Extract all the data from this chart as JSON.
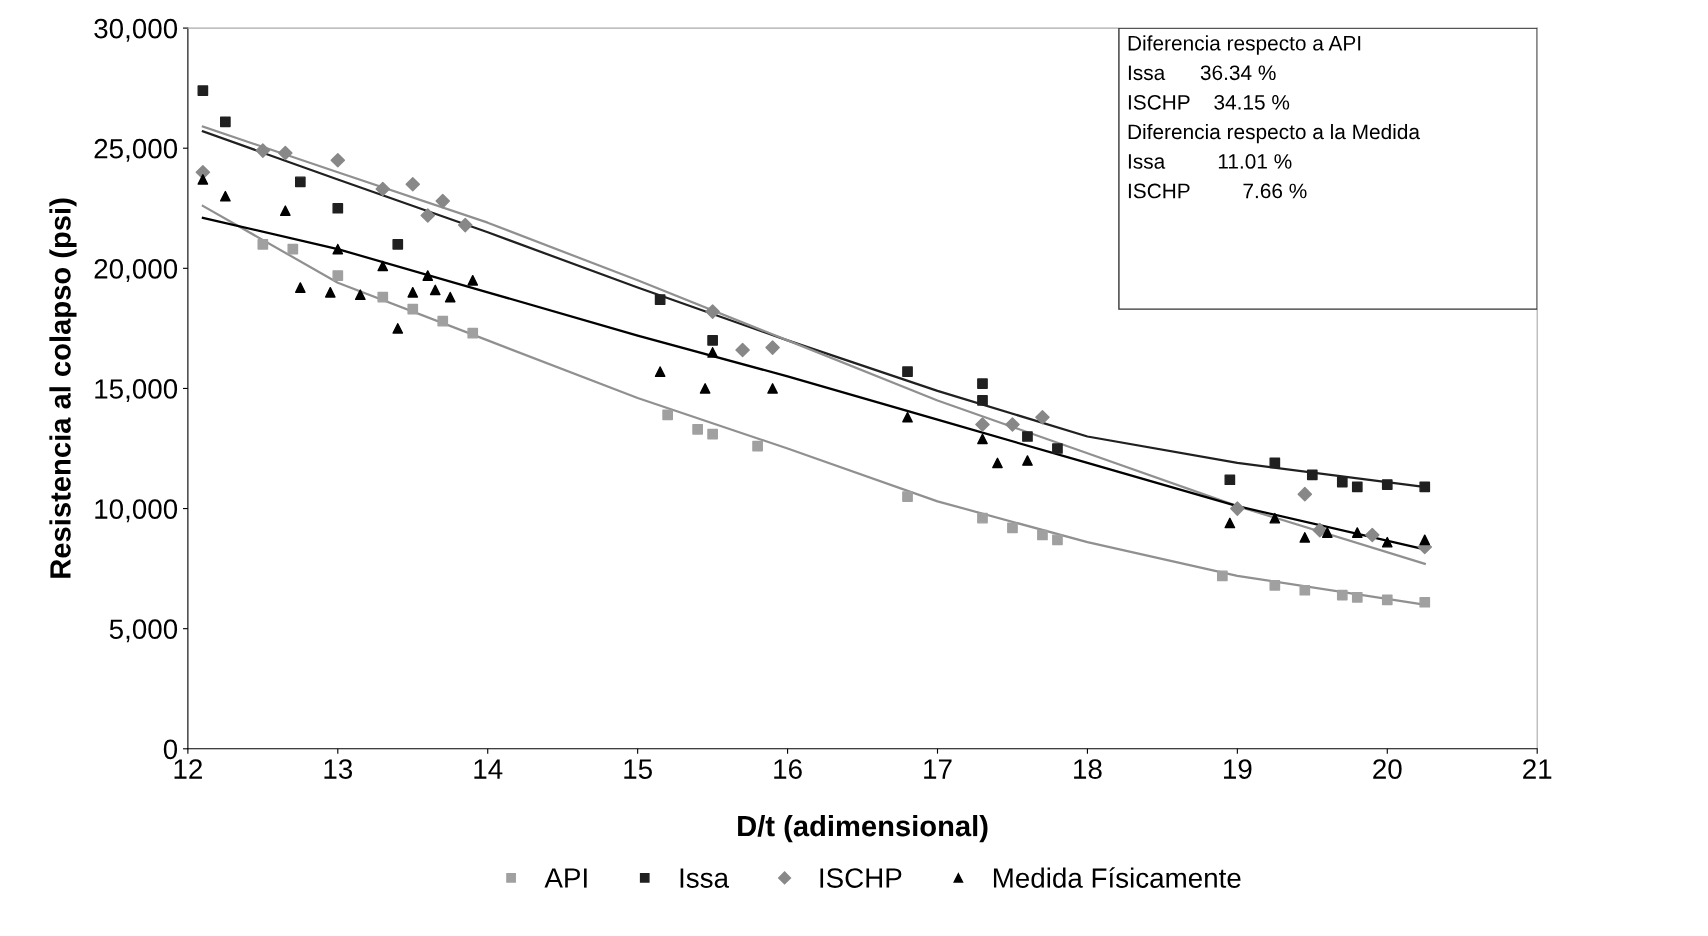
{
  "chart_data": {
    "type": "scatter",
    "xlabel": "D/t (adimensional)",
    "ylabel": "Resistencia al colapso (psi)",
    "xlim": [
      12,
      21
    ],
    "xticks": [
      12,
      13,
      14,
      15,
      16,
      17,
      18,
      19,
      20,
      21
    ],
    "ylim": [
      0,
      30000
    ],
    "yticks": [
      {
        "value": 0,
        "label": "0"
      },
      {
        "value": 5000,
        "label": "5,000"
      },
      {
        "value": 10000,
        "label": "10,000"
      },
      {
        "value": 15000,
        "label": "15,000"
      },
      {
        "value": 20000,
        "label": "20,000"
      },
      {
        "value": 25000,
        "label": "25,000"
      },
      {
        "value": 30000,
        "label": "30,000"
      }
    ],
    "grid": false,
    "legend": "bottom",
    "annotations": [
      "Diferencia respecto a API",
      "Issa      36.34 %",
      "ISCHP    34.15 %",
      "Diferencia respecto a la Medida",
      "Issa         11.01 %",
      "ISCHP         7.66 %"
    ],
    "series": [
      {
        "name": "API",
        "color": "#a0a0a0",
        "marker": "square",
        "x": [
          12.5,
          12.7,
          13.0,
          13.3,
          13.5,
          13.7,
          13.9,
          15.2,
          15.4,
          15.5,
          15.8,
          16.8,
          17.3,
          17.5,
          17.7,
          17.8,
          18.9,
          19.25,
          19.45,
          19.7,
          19.8,
          20.0,
          20.25
        ],
        "values": [
          21000,
          20800,
          19700,
          18800,
          18300,
          17800,
          17300,
          13900,
          13300,
          13100,
          12600,
          10500,
          9600,
          9200,
          8900,
          8700,
          7200,
          6800,
          6600,
          6400,
          6300,
          6200,
          6100
        ]
      },
      {
        "name": "Issa",
        "color": "#202020",
        "marker": "square",
        "x": [
          12.1,
          12.25,
          12.75,
          13.0,
          13.4,
          15.15,
          15.5,
          16.8,
          17.3,
          17.3,
          17.6,
          17.8,
          18.95,
          19.25,
          19.5,
          19.7,
          19.8,
          20.0,
          20.25
        ],
        "values": [
          27400,
          26100,
          23600,
          22500,
          21000,
          18700,
          17000,
          15700,
          15200,
          14500,
          13000,
          12500,
          11200,
          11900,
          11400,
          11100,
          10900,
          11000,
          10900
        ]
      },
      {
        "name": "ISCHP",
        "color": "#888888",
        "marker": "diamond",
        "x": [
          12.1,
          12.5,
          12.65,
          13.0,
          13.3,
          13.5,
          13.6,
          13.7,
          13.85,
          15.5,
          15.7,
          15.9,
          17.3,
          17.5,
          17.7,
          19.0,
          19.45,
          19.55,
          19.9,
          20.25
        ],
        "values": [
          24000,
          24900,
          24800,
          24500,
          23300,
          23500,
          22200,
          22800,
          21800,
          18200,
          16600,
          16700,
          13500,
          13500,
          13800,
          10000,
          10600,
          9100,
          8900,
          8400
        ]
      },
      {
        "name": "Medida Físicamente",
        "color": "#000000",
        "marker": "triangle",
        "x": [
          12.1,
          12.25,
          12.65,
          12.75,
          13.0,
          12.95,
          13.15,
          13.3,
          13.4,
          13.5,
          13.6,
          13.65,
          13.75,
          13.9,
          15.15,
          15.45,
          15.5,
          15.9,
          16.8,
          17.3,
          17.4,
          17.6,
          18.95,
          19.25,
          19.45,
          19.6,
          19.8,
          20.0,
          20.25
        ],
        "values": [
          23700,
          23000,
          22400,
          19200,
          20800,
          19000,
          18900,
          20100,
          17500,
          19000,
          19700,
          19100,
          18800,
          19500,
          15700,
          15000,
          16500,
          15000,
          13800,
          12900,
          11900,
          12000,
          9400,
          9600,
          8800,
          9000,
          9000,
          8600,
          8700
        ]
      },
      {
        "type": "line",
        "color": "#909090",
        "x": [
          12.1,
          13,
          14,
          15,
          16,
          17,
          18,
          19,
          20.25
        ],
        "values": [
          22600,
          19400,
          17000,
          14600,
          12500,
          10300,
          8600,
          7200,
          6000
        ]
      },
      {
        "type": "line",
        "color": "#202020",
        "x": [
          12.1,
          13,
          14,
          15,
          16,
          17,
          18,
          19,
          20.25
        ],
        "values": [
          25700,
          23700,
          21500,
          19200,
          17000,
          14900,
          13000,
          11900,
          10900
        ]
      },
      {
        "type": "line",
        "color": "#909090",
        "x": [
          12.1,
          13,
          14,
          15,
          16,
          17,
          18,
          19,
          20.25
        ],
        "values": [
          25900,
          24000,
          21900,
          19500,
          17000,
          14500,
          12300,
          10100,
          7700
        ]
      },
      {
        "type": "line",
        "color": "#000000",
        "x": [
          12.1,
          13,
          14,
          15,
          16,
          17,
          18,
          19,
          20.25
        ],
        "values": [
          22100,
          20800,
          19000,
          17200,
          15500,
          13700,
          11900,
          10100,
          8300
        ]
      }
    ]
  }
}
